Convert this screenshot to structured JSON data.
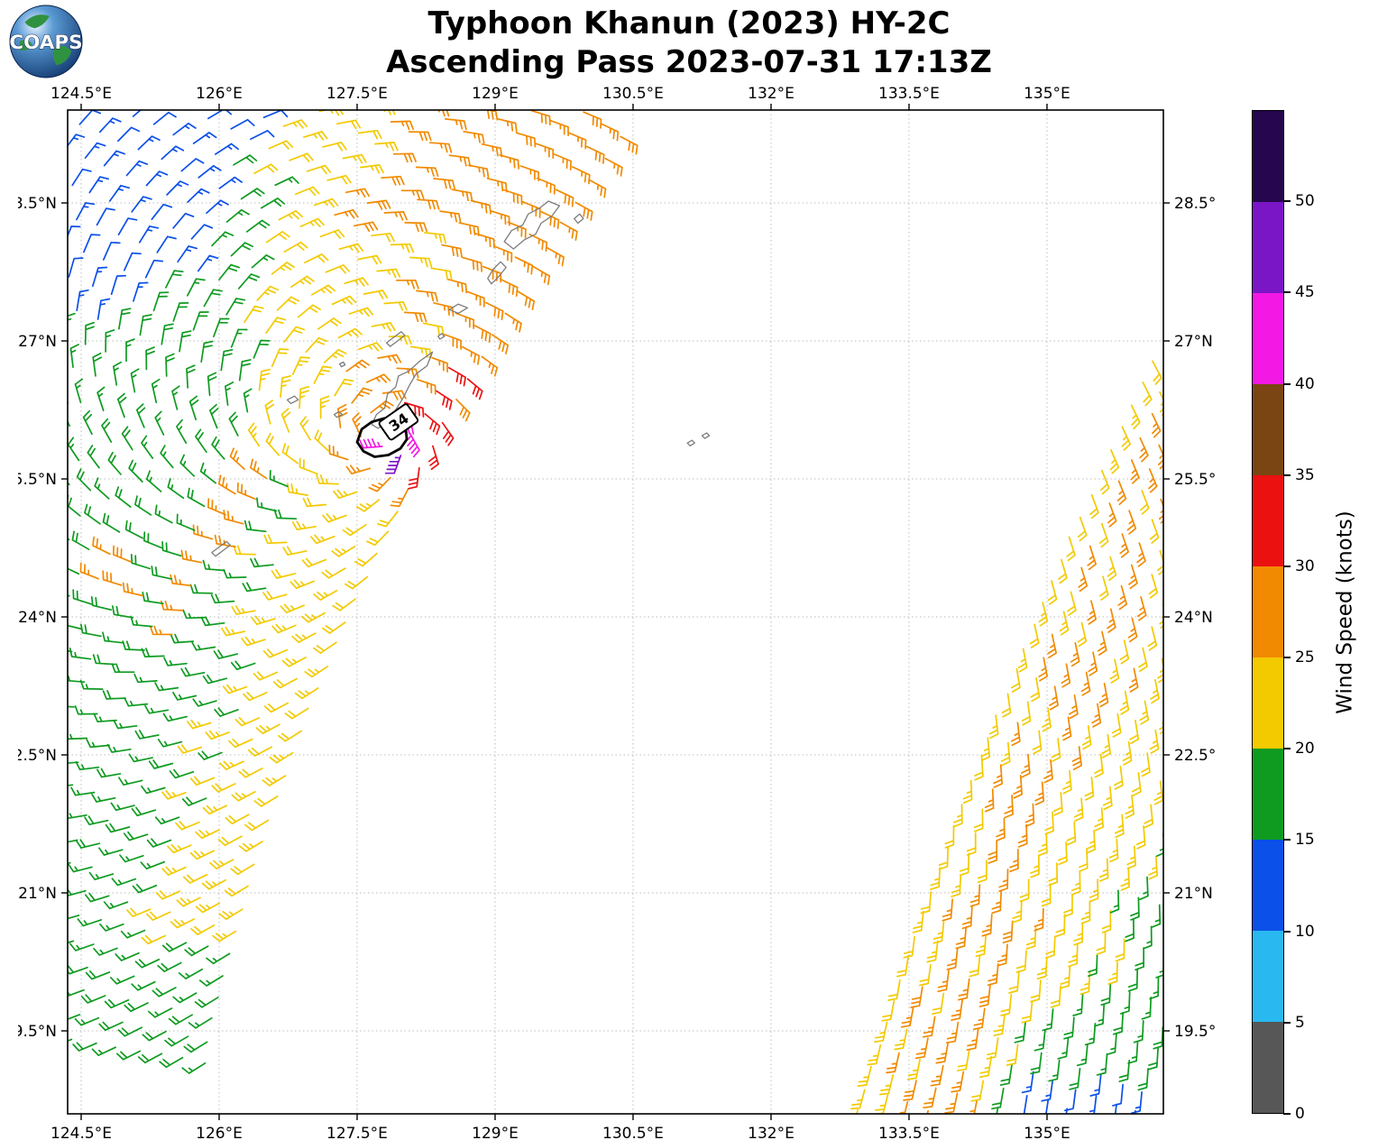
{
  "header": {
    "title_line1": "Typhoon Khanun (2023) HY-2C",
    "title_line2": "Ascending Pass 2023-07-31 17:13Z",
    "logo_text": "COAPS"
  },
  "chart_data": {
    "type": "wind_barb_map",
    "satellite": "HY-2C",
    "pass_type": "Ascending",
    "pass_time": "2023-07-31 17:13Z",
    "storm": {
      "name": "Khanun",
      "year": "2023",
      "center_lon": 127.85,
      "center_lat": 25.95,
      "contour_label": "34",
      "contour_label_pos": [
        127.95,
        26.12
      ],
      "contour_label_rotation": -35,
      "contour_points": [
        [
          127.5,
          25.9
        ],
        [
          127.55,
          26.04
        ],
        [
          127.66,
          26.12
        ],
        [
          127.8,
          26.16
        ],
        [
          127.94,
          26.13
        ],
        [
          128.03,
          26.04
        ],
        [
          128.04,
          25.93
        ],
        [
          127.97,
          25.83
        ],
        [
          127.84,
          25.76
        ],
        [
          127.69,
          25.74
        ],
        [
          127.57,
          25.8
        ]
      ]
    },
    "axes": {
      "lon_range": [
        124.353,
        136.265
      ],
      "lat_range": [
        18.598,
        29.51
      ],
      "grid": "dotted",
      "lon_ticks": [
        {
          "v": 124.5,
          "label": "124.5°E"
        },
        {
          "v": 126,
          "label": "126°E"
        },
        {
          "v": 127.5,
          "label": "127.5°E"
        },
        {
          "v": 129,
          "label": "129°E"
        },
        {
          "v": 130.5,
          "label": "130.5°E"
        },
        {
          "v": 132,
          "label": "132°E"
        },
        {
          "v": 133.5,
          "label": "133.5°E"
        },
        {
          "v": 135,
          "label": "135°E"
        }
      ],
      "lat_ticks": [
        {
          "v": 28.5,
          "label": "28.5°N"
        },
        {
          "v": 27,
          "label": "27°N"
        },
        {
          "v": 25.5,
          "label": "25.5°N"
        },
        {
          "v": 24,
          "label": "24°N"
        },
        {
          "v": 22.5,
          "label": "22.5°N"
        },
        {
          "v": 21,
          "label": "21°N"
        },
        {
          "v": 19.5,
          "label": "19.5°N"
        }
      ]
    },
    "colorbar": {
      "label": "Wind Speed (knots)",
      "vmin": 0,
      "vmax": 55,
      "ticks": [
        0,
        5,
        10,
        15,
        20,
        25,
        30,
        35,
        40,
        45,
        50
      ],
      "bins": [
        {
          "range": [
            0,
            5
          ],
          "color": "#575757"
        },
        {
          "range": [
            5,
            10
          ],
          "color": "#29b8f0"
        },
        {
          "range": [
            10,
            15
          ],
          "color": "#0b50e8"
        },
        {
          "range": [
            15,
            20
          ],
          "color": "#0e9b20"
        },
        {
          "range": [
            20,
            25
          ],
          "color": "#f3ca00"
        },
        {
          "range": [
            25,
            30
          ],
          "color": "#f18a00"
        },
        {
          "range": [
            30,
            35
          ],
          "color": "#eb1111"
        },
        {
          "range": [
            35,
            40
          ],
          "color": "#7a4513"
        },
        {
          "range": [
            40,
            45
          ],
          "color": "#f318e4"
        },
        {
          "range": [
            45,
            50
          ],
          "color": "#7b16c7"
        },
        {
          "range": [
            50,
            55
          ],
          "color": "#26064e"
        }
      ]
    },
    "wind_model": {
      "rotation": "counterclockwise",
      "inflow_deg": 25,
      "background_flow": [
        -0.15,
        0.38
      ],
      "barb_convention": "half barb = 5 kt, full barb = 10 kt"
    },
    "swaths": [
      {
        "id": 1,
        "edge": "right",
        "lat_ref": 19,
        "c0": 125.8,
        "c1": 0.2,
        "c2": 0.024,
        "lat_start": 19.15,
        "lat_end": 29.45,
        "step": 0.24,
        "width": 7.2,
        "bend": 0.012,
        "yellow_width": {
          "base": 0.9,
          "lat0": 24.5,
          "slope": 0.5
        },
        "rules": [
          {
            "r_max": 0.3,
            "kt": 44
          },
          {
            "r_max": 0.62,
            "az_min": -45,
            "az_max": 95,
            "kt": 31.5
          },
          {
            "r_max": 0.62,
            "kt": 27
          },
          {
            "r_max": 1.1,
            "az_min": 8,
            "az_max": 50,
            "kt": 31
          },
          {
            "r_max": 0.98,
            "az_min": -70,
            "az_max": 130,
            "kt": 26.5
          },
          {
            "r_max": 1.05,
            "kt": 23
          },
          {
            "lat_min": 28.2,
            "u_max": 2.25,
            "kt": 27
          },
          {
            "lat_min": 27.2,
            "u_max": 0.95,
            "kt": 27
          },
          {
            "lat_min": 26.35,
            "u_max": 0.55,
            "kt": 27
          },
          {
            "seg": [
              [
                126.45,
                25.55
              ],
              [
                125.5,
                23.9
              ]
            ],
            "dist": 0.17,
            "kt": 26.5
          },
          {
            "pt": [
              124.95,
              24.45
            ],
            "dist": 0.3,
            "kt": 26.5
          },
          {
            "lat_max": 20.5,
            "kt": 18
          },
          {
            "u_min": 3.35,
            "lat_min": 27.15,
            "kt": 12.5
          },
          {
            "beyond_yellow_width": true,
            "kt": 17.5
          },
          {
            "kt": 22.5
          }
        ]
      },
      {
        "id": 2,
        "edge": "left",
        "lat_ref": 18.6,
        "c0": 132.95,
        "c1": 0.3,
        "c2": 0.011,
        "lat_start": 18.62,
        "lat_end": 27.22,
        "step": 0.24,
        "width": 4.4,
        "bend": 0.01,
        "rules": [
          {
            "lat_max": 19.05,
            "lon_min": 134.55,
            "lon_max": 136.15,
            "kt": 12.5
          },
          {
            "lat_max": 19.75,
            "u_min": 1.35,
            "kt": 17.5
          },
          {
            "u_min": 0.28,
            "u_max": 0.95,
            "lat_max": 26.2,
            "kt": 26.5
          },
          {
            "u_min": 2.0,
            "lat_max": 23.2,
            "kt": 17.5
          },
          {
            "kt": 22.5
          }
        ]
      }
    ],
    "coastlines": [
      [
        [
          127.66,
          26.09
        ],
        [
          127.71,
          26.2
        ],
        [
          127.8,
          26.27
        ],
        [
          127.83,
          26.42
        ],
        [
          127.92,
          26.5
        ],
        [
          127.95,
          26.62
        ],
        [
          128.06,
          26.67
        ],
        [
          128.18,
          26.78
        ],
        [
          128.32,
          26.88
        ],
        [
          128.26,
          26.73
        ],
        [
          128.14,
          26.64
        ],
        [
          128.07,
          26.52
        ],
        [
          128.0,
          26.38
        ],
        [
          127.9,
          26.22
        ],
        [
          127.82,
          26.12
        ],
        [
          127.73,
          26.05
        ]
      ],
      [
        [
          129.1,
          28.08
        ],
        [
          129.18,
          28.2
        ],
        [
          129.3,
          28.26
        ],
        [
          129.36,
          28.38
        ],
        [
          129.48,
          28.44
        ],
        [
          129.58,
          28.52
        ],
        [
          129.7,
          28.47
        ],
        [
          129.62,
          28.36
        ],
        [
          129.5,
          28.28
        ],
        [
          129.44,
          28.16
        ],
        [
          129.32,
          28.1
        ],
        [
          129.2,
          28.0
        ]
      ],
      [
        [
          129.9,
          28.28
        ],
        [
          129.96,
          28.33
        ],
        [
          129.92,
          28.38
        ],
        [
          129.86,
          28.33
        ]
      ],
      [
        [
          128.92,
          27.68
        ],
        [
          128.98,
          27.78
        ],
        [
          129.06,
          27.86
        ],
        [
          129.12,
          27.8
        ],
        [
          129.04,
          27.7
        ],
        [
          128.96,
          27.62
        ]
      ],
      [
        [
          128.5,
          27.34
        ],
        [
          128.6,
          27.4
        ],
        [
          128.7,
          27.36
        ],
        [
          128.6,
          27.3
        ]
      ],
      [
        [
          128.4,
          27.02
        ],
        [
          128.45,
          27.05
        ],
        [
          128.42,
          27.08
        ],
        [
          128.38,
          27.05
        ]
      ],
      [
        [
          127.82,
          26.98
        ],
        [
          127.9,
          27.04
        ],
        [
          127.98,
          27.1
        ],
        [
          128.02,
          27.06
        ],
        [
          127.94,
          27.0
        ],
        [
          127.86,
          26.94
        ]
      ],
      [
        [
          127.33,
          26.72
        ],
        [
          127.37,
          26.74
        ],
        [
          127.35,
          26.77
        ],
        [
          127.31,
          26.75
        ]
      ],
      [
        [
          126.78,
          26.32
        ],
        [
          126.86,
          26.36
        ],
        [
          126.82,
          26.4
        ],
        [
          126.74,
          26.36
        ]
      ],
      [
        [
          127.28,
          26.17
        ],
        [
          127.34,
          26.2
        ],
        [
          127.3,
          26.23
        ],
        [
          127.25,
          26.2
        ]
      ],
      [
        [
          125.92,
          24.7
        ],
        [
          126.0,
          24.76
        ],
        [
          126.08,
          24.82
        ],
        [
          126.12,
          24.78
        ],
        [
          126.04,
          24.72
        ],
        [
          125.96,
          24.66
        ]
      ],
      [
        [
          131.12,
          25.86
        ],
        [
          131.17,
          25.89
        ],
        [
          131.14,
          25.92
        ],
        [
          131.09,
          25.89
        ]
      ],
      [
        [
          131.28,
          25.94
        ],
        [
          131.33,
          25.97
        ],
        [
          131.3,
          26.0
        ],
        [
          131.25,
          25.97
        ]
      ]
    ]
  }
}
